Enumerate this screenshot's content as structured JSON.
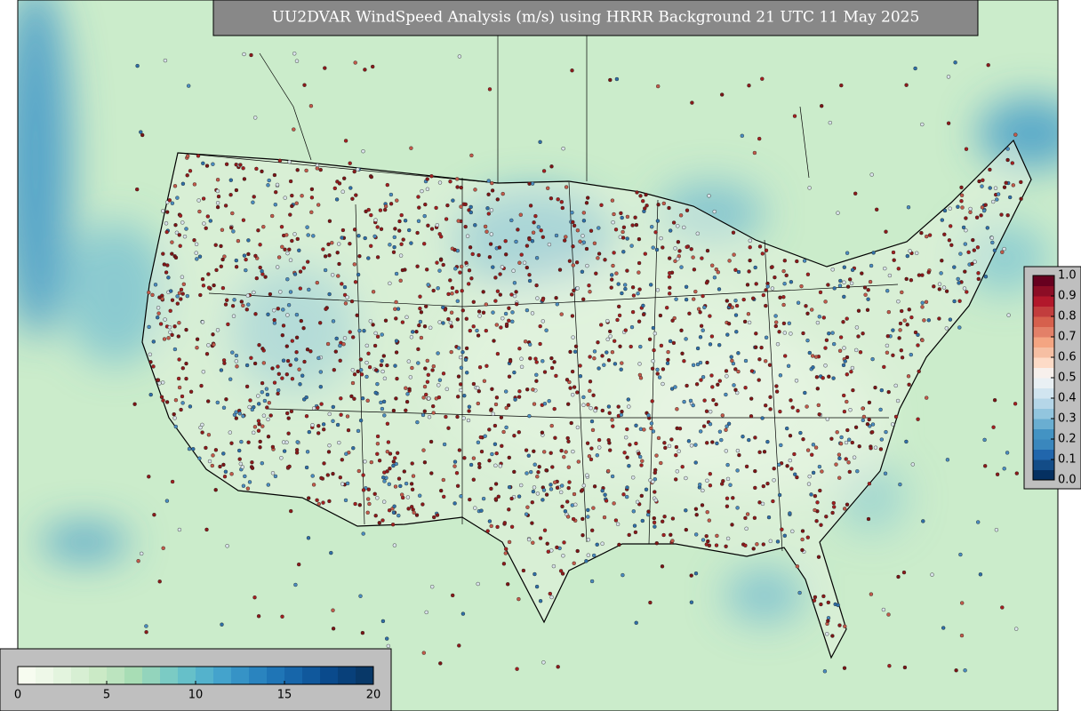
{
  "title": "UU2DVAR WindSpeed Analysis (m/s) using HRRR Background 21 UTC 11 May 2025",
  "colorbars": [
    {
      "orientation": "horizontal",
      "lim": [
        0,
        20
      ],
      "ticks": [
        0,
        5,
        10,
        15,
        20
      ],
      "colors": [
        "#f7fcf0",
        "#eef8e8",
        "#e3f4de",
        "#d7efd3",
        "#cbeac6",
        "#bce4bf",
        "#a8ddb5",
        "#93d4bc",
        "#7bcbc4",
        "#66c0c9",
        "#54b2cc",
        "#44a3cc",
        "#3693c6",
        "#2a84bf",
        "#1f75b6",
        "#1766aa",
        "#10589c",
        "#0a4a8c",
        "#08407a",
        "#083868"
      ]
    },
    {
      "orientation": "vertical",
      "lim": [
        0,
        1
      ],
      "ticks": [
        {
          "value": 0,
          "label": "0.0"
        },
        0.1,
        0.2,
        0.3,
        0.4,
        0.5,
        0.6,
        0.7,
        0.8,
        0.9,
        {
          "value": 1,
          "label": "1.0"
        }
      ],
      "colors": [
        "#053061",
        "#134c87",
        "#2166ac",
        "#3a87bd",
        "#4393c3",
        "#6aaed1",
        "#92c5de",
        "#b5d6e8",
        "#d1e5f0",
        "#e9f0f4",
        "#f7f0ec",
        "#fddbc7",
        "#f6bfa3",
        "#f4a582",
        "#e38068",
        "#d6604d",
        "#c23d3d",
        "#b2182b",
        "#8c0d25",
        "#67001f"
      ]
    }
  ]
}
